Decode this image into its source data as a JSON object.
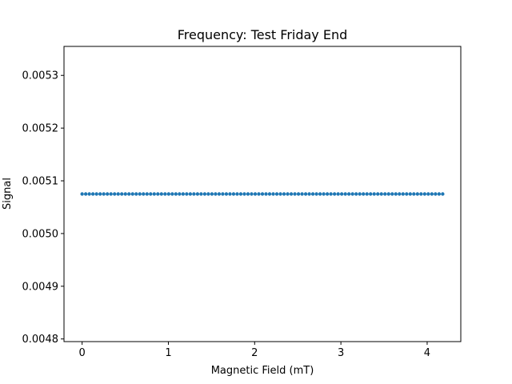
{
  "chart_data": {
    "type": "scatter",
    "title": "Frequency: Test Friday End",
    "xlabel": "Magnetic Field (mT)",
    "ylabel": "Signal",
    "xlim": [
      -0.21,
      4.39
    ],
    "ylim": [
      0.004795,
      0.005355
    ],
    "xticks": [
      0,
      1,
      2,
      3,
      4
    ],
    "xtick_labels": [
      "0",
      "1",
      "2",
      "3",
      "4"
    ],
    "yticks": [
      0.0048,
      0.0049,
      0.005,
      0.0051,
      0.0052,
      0.0053
    ],
    "ytick_labels": [
      "0.0048",
      "0.0049",
      "0.0050",
      "0.0051",
      "0.0052",
      "0.0053"
    ],
    "grid": false,
    "series": [
      {
        "color": "#1f77b4",
        "x_start": 0,
        "x_end": 4.18,
        "x_step": 0.0418,
        "y_constant": 0.005075
      }
    ]
  }
}
